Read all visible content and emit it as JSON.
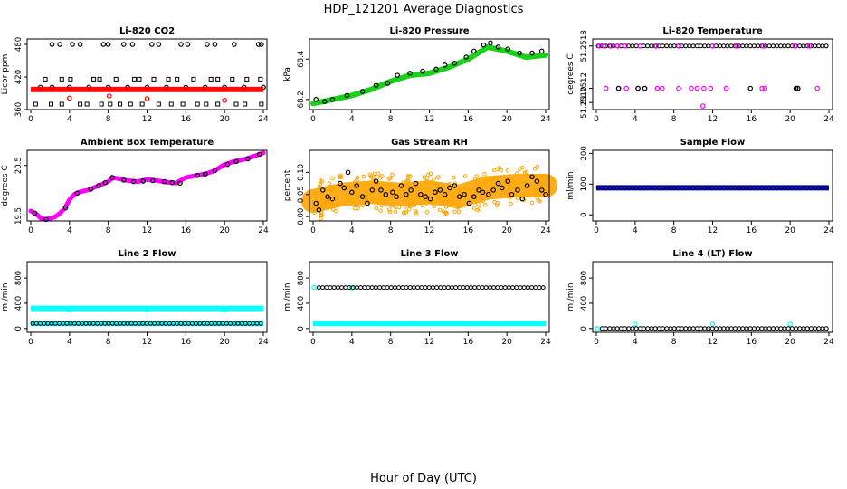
{
  "figure": {
    "title": "HDP_121201  Average Diagnostics",
    "xlabel": "Hour of Day (UTC)"
  },
  "chart_data": [
    {
      "type": "scatter",
      "title": "Li-820 CO2",
      "ylabel": "Licor ppm",
      "xlim": [
        0,
        24
      ],
      "ylim": [
        360,
        490
      ],
      "xticks": [
        "0",
        "4",
        "8",
        "12",
        "16",
        "20",
        "24"
      ],
      "yticks": [
        {
          "v": 360,
          "label": "360"
        },
        {
          "v": 420,
          "label": "420"
        },
        {
          "v": 480,
          "label": "480"
        }
      ],
      "series": [
        {
          "color": "#000000",
          "style": "circle",
          "x": [
            2.2,
            3.0,
            4.3,
            5.1,
            7.5,
            8.0,
            9.6,
            10.5,
            12.5,
            13.2,
            15.5,
            16.2,
            18.2,
            19.0,
            21.0,
            23.5,
            23.8
          ],
          "y": [
            480,
            480,
            480,
            480,
            480,
            480,
            480,
            480,
            480,
            480,
            480,
            480,
            480,
            480,
            480,
            480,
            480
          ]
        },
        {
          "color": "#000000",
          "style": "square",
          "x": [
            1.5,
            3.2,
            4.1,
            6.5,
            7.1,
            8.8,
            10.7,
            11.2,
            12.7,
            14.2,
            15.1,
            16.8,
            18.6,
            19.3,
            20.8,
            22.3,
            23.7
          ],
          "y": [
            416,
            416,
            416,
            416,
            416,
            416,
            416,
            416,
            416,
            416,
            416,
            416,
            416,
            416,
            416,
            416,
            416
          ]
        },
        {
          "color": "#000000",
          "style": "circle",
          "x": [
            1.0,
            2.2,
            4.0,
            6.0,
            8.0,
            10.0,
            12.0,
            14.0,
            16.0,
            18.0,
            20.0,
            22.0,
            24.0
          ],
          "y": [
            401,
            401,
            401,
            401,
            401,
            401,
            401,
            401,
            401,
            401,
            401,
            401,
            401
          ]
        },
        {
          "color": "#000000",
          "style": "square",
          "x": [
            0.5,
            2.1,
            3.2,
            5.1,
            5.8,
            7.3,
            8.2,
            9.2,
            10.3,
            11.5,
            13.2,
            14.5,
            15.7,
            17.2,
            18.1,
            19.3,
            21.2,
            22.1,
            23.8
          ],
          "y": [
            370,
            370,
            370,
            370,
            370,
            370,
            370,
            370,
            370,
            370,
            370,
            370,
            370,
            370,
            370,
            370,
            370,
            370,
            370
          ]
        },
        {
          "color": "#ff0000",
          "style": "band",
          "x": [
            0,
            24
          ],
          "y": [
            397,
            397
          ]
        },
        {
          "color": "#ff0000",
          "style": "circle",
          "x": [
            4.0,
            8.1,
            12.0,
            20.0
          ],
          "y": [
            381,
            385,
            380,
            377
          ]
        }
      ]
    },
    {
      "type": "scatter",
      "title": "Li-820 Pressure",
      "ylabel": "kPa",
      "xlim": [
        0,
        24
      ],
      "ylim": [
        68.15,
        68.5
      ],
      "xticks": [
        "0",
        "4",
        "8",
        "12",
        "16",
        "20",
        "24"
      ],
      "yticks": [
        {
          "v": 68.2,
          "label": "68.2"
        },
        {
          "v": 68.4,
          "label": "68.4"
        }
      ],
      "series": [
        {
          "color": "#00cc00",
          "style": "band",
          "x": [
            0,
            2,
            4,
            6,
            8,
            10,
            12,
            14,
            16,
            18,
            20,
            22,
            24
          ],
          "y": [
            68.18,
            68.2,
            68.22,
            68.25,
            68.29,
            68.32,
            68.33,
            68.36,
            68.4,
            68.46,
            68.44,
            68.41,
            68.42
          ]
        },
        {
          "color": "#000000",
          "style": "circle",
          "x": [
            0.3,
            1.2,
            2.0,
            3.5,
            5.1,
            6.5,
            7.7,
            8.7,
            10.0,
            11.3,
            12.7,
            13.6,
            14.6,
            15.8,
            16.6,
            17.6,
            18.3,
            19.1,
            20.1,
            21.3,
            22.6,
            23.6
          ],
          "y": [
            68.2,
            68.19,
            68.2,
            68.22,
            68.24,
            68.27,
            68.28,
            68.32,
            68.33,
            68.34,
            68.35,
            68.37,
            68.38,
            68.41,
            68.44,
            68.47,
            68.48,
            68.46,
            68.45,
            68.43,
            68.43,
            68.44
          ]
        }
      ]
    },
    {
      "type": "scatter",
      "title": "Li-820 Temperature",
      "ylabel": "degrees C",
      "xlim": [
        0,
        24
      ],
      "ylim": [
        51.2509,
        51.2519
      ],
      "xticks": [
        "0",
        "4",
        "8",
        "12",
        "16",
        "20",
        "24"
      ],
      "yticks": [
        {
          "v": 51.251,
          "label": "51.2510"
        },
        {
          "v": 51.2512,
          "label": "51.2512"
        },
        {
          "v": 51.2518,
          "label": "51.2518"
        }
      ],
      "series": [
        {
          "color": "#000000",
          "style": "line",
          "x": [
            0.2,
            23.8
          ],
          "y": [
            51.2518,
            51.2518
          ]
        },
        {
          "color": "#ff00ff",
          "style": "circle",
          "x": [
            0.3,
            0.8,
            1.5,
            2.2,
            3.0,
            4.5,
            6.2,
            8.5,
            12.0,
            14.5,
            17.2,
            20.5,
            22.0
          ],
          "y": [
            51.2518,
            51.2518,
            51.2518,
            51.2518,
            51.2518,
            51.2518,
            51.2518,
            51.2518,
            51.2518,
            51.2518,
            51.2518,
            51.2518,
            51.2518
          ]
        },
        {
          "color": "#ff00ff",
          "style": "circle",
          "x": [
            1.0,
            2.3,
            3.1,
            4.3,
            5.0,
            6.3,
            6.8,
            8.5,
            9.8,
            10.4,
            11.1,
            11.8,
            13.4,
            17.1,
            17.4,
            20.8,
            22.8
          ],
          "y": [
            51.2512,
            51.2512,
            51.2512,
            51.2512,
            51.2512,
            51.2512,
            51.2512,
            51.2512,
            51.2512,
            51.2512,
            51.2512,
            51.2512,
            51.2512,
            51.2512,
            51.2512,
            51.2512,
            51.2512
          ]
        },
        {
          "color": "#000000",
          "style": "circle",
          "x": [
            2.3,
            4.3,
            5.0,
            15.9,
            20.6,
            20.8
          ],
          "y": [
            51.2512,
            51.2512,
            51.2512,
            51.2512,
            51.2512,
            51.2512
          ]
        },
        {
          "color": "#ff00ff",
          "style": "circle",
          "x": [
            11.0
          ],
          "y": [
            51.25095
          ]
        }
      ]
    },
    {
      "type": "scatter",
      "title": "Ambient Box Temperature",
      "ylabel": "degrees C",
      "xlim": [
        0,
        24
      ],
      "ylim": [
        19.4,
        20.8
      ],
      "xticks": [
        "0",
        "4",
        "8",
        "12",
        "16",
        "20",
        "24"
      ],
      "yticks": [
        {
          "v": 19.5,
          "label": "19.5"
        },
        {
          "v": 20.5,
          "label": "20.5"
        }
      ],
      "series": [
        {
          "color": "#ff00ff",
          "style": "curve",
          "x": [
            0,
            0.5,
            1,
            1.5,
            2,
            2.5,
            3,
            3.5,
            4,
            4.5,
            5,
            6,
            7,
            8,
            8.5,
            9,
            10,
            11,
            12,
            13,
            14,
            15,
            16,
            17,
            18,
            19,
            20,
            21,
            22,
            23,
            24
          ],
          "y": [
            19.6,
            19.55,
            19.46,
            19.43,
            19.45,
            19.48,
            19.55,
            19.65,
            19.82,
            19.93,
            19.97,
            20.02,
            20.1,
            20.18,
            20.26,
            20.24,
            20.2,
            20.18,
            20.22,
            20.2,
            20.17,
            20.15,
            20.26,
            20.3,
            20.33,
            20.4,
            20.52,
            20.58,
            20.62,
            20.68,
            20.75
          ]
        },
        {
          "color": "#000000",
          "style": "circle",
          "x": [
            0.4,
            1.6,
            3.6,
            4.8,
            6.2,
            7.0,
            7.7,
            8.4,
            9.6,
            10.6,
            11.6,
            12.6,
            13.8,
            14.6,
            15.4,
            17.2,
            18.0,
            19.0,
            20.3,
            21.2,
            22.4,
            23.6
          ],
          "y": [
            19.55,
            19.43,
            19.66,
            19.95,
            20.03,
            20.1,
            20.16,
            20.26,
            20.21,
            20.18,
            20.19,
            20.2,
            20.18,
            20.16,
            20.15,
            20.3,
            20.33,
            20.4,
            20.52,
            20.58,
            20.63,
            20.72
          ]
        }
      ]
    },
    {
      "type": "scatter",
      "title": "Gas Stream RH",
      "ylabel": "percent",
      "xlim": [
        0,
        24
      ],
      "ylim": [
        -0.01,
        0.15
      ],
      "xticks": [
        "0",
        "4",
        "8",
        "12",
        "16",
        "20",
        "24"
      ],
      "yticks": [
        {
          "v": 0.0,
          "label": "0.00"
        },
        {
          "v": 0.05,
          "label": "0.05"
        },
        {
          "v": 0.1,
          "label": "0.10"
        }
      ],
      "series": [
        {
          "color": "#ffa500",
          "style": "band",
          "x": [
            0,
            3,
            6,
            9,
            12,
            15,
            18,
            21,
            24
          ],
          "y": [
            0.035,
            0.05,
            0.055,
            0.05,
            0.055,
            0.045,
            0.065,
            0.07,
            0.07
          ]
        },
        {
          "color": "#000000",
          "style": "circle",
          "x": [
            0.3,
            0.6,
            1.0,
            1.5,
            2.0,
            2.8,
            3.2,
            3.6,
            4.0,
            4.5,
            5.1,
            5.6,
            6.1,
            6.5,
            7.0,
            7.5,
            8.2,
            8.6,
            9.1,
            9.6,
            10.1,
            10.6,
            11.1,
            11.6,
            12.1,
            12.6,
            13.1,
            13.6,
            14.1,
            14.6,
            15.1,
            15.6,
            16.1,
            16.6,
            17.1,
            17.5,
            18.1,
            18.6,
            19.1,
            19.5,
            20.1,
            20.5,
            21.1,
            21.6,
            22.1,
            22.6,
            23.1,
            23.6,
            24.0
          ],
          "y": [
            0.03,
            0.015,
            0.06,
            0.045,
            0.04,
            0.075,
            0.065,
            0.1,
            0.055,
            0.07,
            0.045,
            0.03,
            0.06,
            0.08,
            0.06,
            0.05,
            0.055,
            0.045,
            0.07,
            0.05,
            0.06,
            0.075,
            0.05,
            0.045,
            0.04,
            0.055,
            0.06,
            0.05,
            0.065,
            0.07,
            0.045,
            0.05,
            0.03,
            0.045,
            0.06,
            0.055,
            0.05,
            0.06,
            0.075,
            0.065,
            0.08,
            0.05,
            0.06,
            0.04,
            0.07,
            0.09,
            0.08,
            0.06,
            0.05
          ]
        }
      ]
    },
    {
      "type": "scatter",
      "title": "Sample Flow",
      "ylabel": "ml/min",
      "xlim": [
        0,
        24
      ],
      "ylim": [
        -20,
        210
      ],
      "xticks": [
        "0",
        "4",
        "8",
        "12",
        "16",
        "20",
        "24"
      ],
      "yticks": [
        {
          "v": 0,
          "label": "0"
        },
        {
          "v": 100,
          "label": "100"
        },
        {
          "v": 200,
          "label": "200"
        }
      ],
      "series": [
        {
          "color": "#0000ff",
          "style": "band",
          "x": [
            0,
            24
          ],
          "y": [
            88,
            88
          ]
        },
        {
          "color": "#000000",
          "style": "line",
          "x": [
            0.2,
            23.8
          ],
          "y": [
            88,
            88
          ]
        }
      ]
    },
    {
      "type": "scatter",
      "title": "Line 2 Flow",
      "ylabel": "ml/min",
      "xlim": [
        0,
        24
      ],
      "ylim": [
        -60,
        1060
      ],
      "xticks": [
        "0",
        "4",
        "8",
        "12",
        "16",
        "20",
        "24"
      ],
      "yticks": [
        {
          "v": 0,
          "label": "0"
        },
        {
          "v": 400,
          "label": "400"
        },
        {
          "v": 800,
          "label": "800"
        }
      ],
      "series": [
        {
          "color": "#00ffff",
          "style": "band",
          "x": [
            0,
            24
          ],
          "y": [
            320,
            320
          ]
        },
        {
          "color": "#00ffff",
          "style": "circle",
          "x": [
            4.0,
            12.0,
            20.0
          ],
          "y": [
            295,
            295,
            295
          ]
        },
        {
          "color": "#00ffff",
          "style": "band",
          "x": [
            0,
            24
          ],
          "y": [
            80,
            80
          ]
        },
        {
          "color": "#000000",
          "style": "line",
          "x": [
            0.2,
            23.8
          ],
          "y": [
            80,
            80
          ]
        }
      ]
    },
    {
      "type": "scatter",
      "title": "Line 3 Flow",
      "ylabel": "ml/min",
      "xlim": [
        0,
        24
      ],
      "ylim": [
        -60,
        1060
      ],
      "xticks": [
        "0",
        "4",
        "8",
        "12",
        "16",
        "20",
        "24"
      ],
      "yticks": [
        {
          "v": 0,
          "label": "0"
        },
        {
          "v": 400,
          "label": "400"
        },
        {
          "v": 800,
          "label": "800"
        }
      ],
      "series": [
        {
          "color": "#00ffff",
          "style": "circle",
          "x": [
            0.1,
            4.0
          ],
          "y": [
            650,
            645
          ]
        },
        {
          "color": "#000000",
          "style": "line",
          "x": [
            0.6,
            23.8
          ],
          "y": [
            650,
            650
          ]
        },
        {
          "color": "#00ffff",
          "style": "band",
          "x": [
            0,
            24
          ],
          "y": [
            80,
            80
          ]
        }
      ]
    },
    {
      "type": "scatter",
      "title": "Line 4 (LT) Flow",
      "ylabel": "ml/min",
      "xlim": [
        0,
        24
      ],
      "ylim": [
        -60,
        1060
      ],
      "xticks": [
        "0",
        "4",
        "8",
        "12",
        "16",
        "20",
        "24"
      ],
      "yticks": [
        {
          "v": 0,
          "label": "0"
        },
        {
          "v": 400,
          "label": "400"
        },
        {
          "v": 800,
          "label": "800"
        }
      ],
      "series": [
        {
          "color": "#00ffff",
          "style": "circle",
          "x": [
            0.1,
            4.0,
            12.0,
            20.0
          ],
          "y": [
            0,
            70,
            70,
            70
          ]
        },
        {
          "color": "#000000",
          "style": "line",
          "x": [
            0.6,
            23.8
          ],
          "y": [
            0,
            0
          ]
        }
      ]
    }
  ]
}
